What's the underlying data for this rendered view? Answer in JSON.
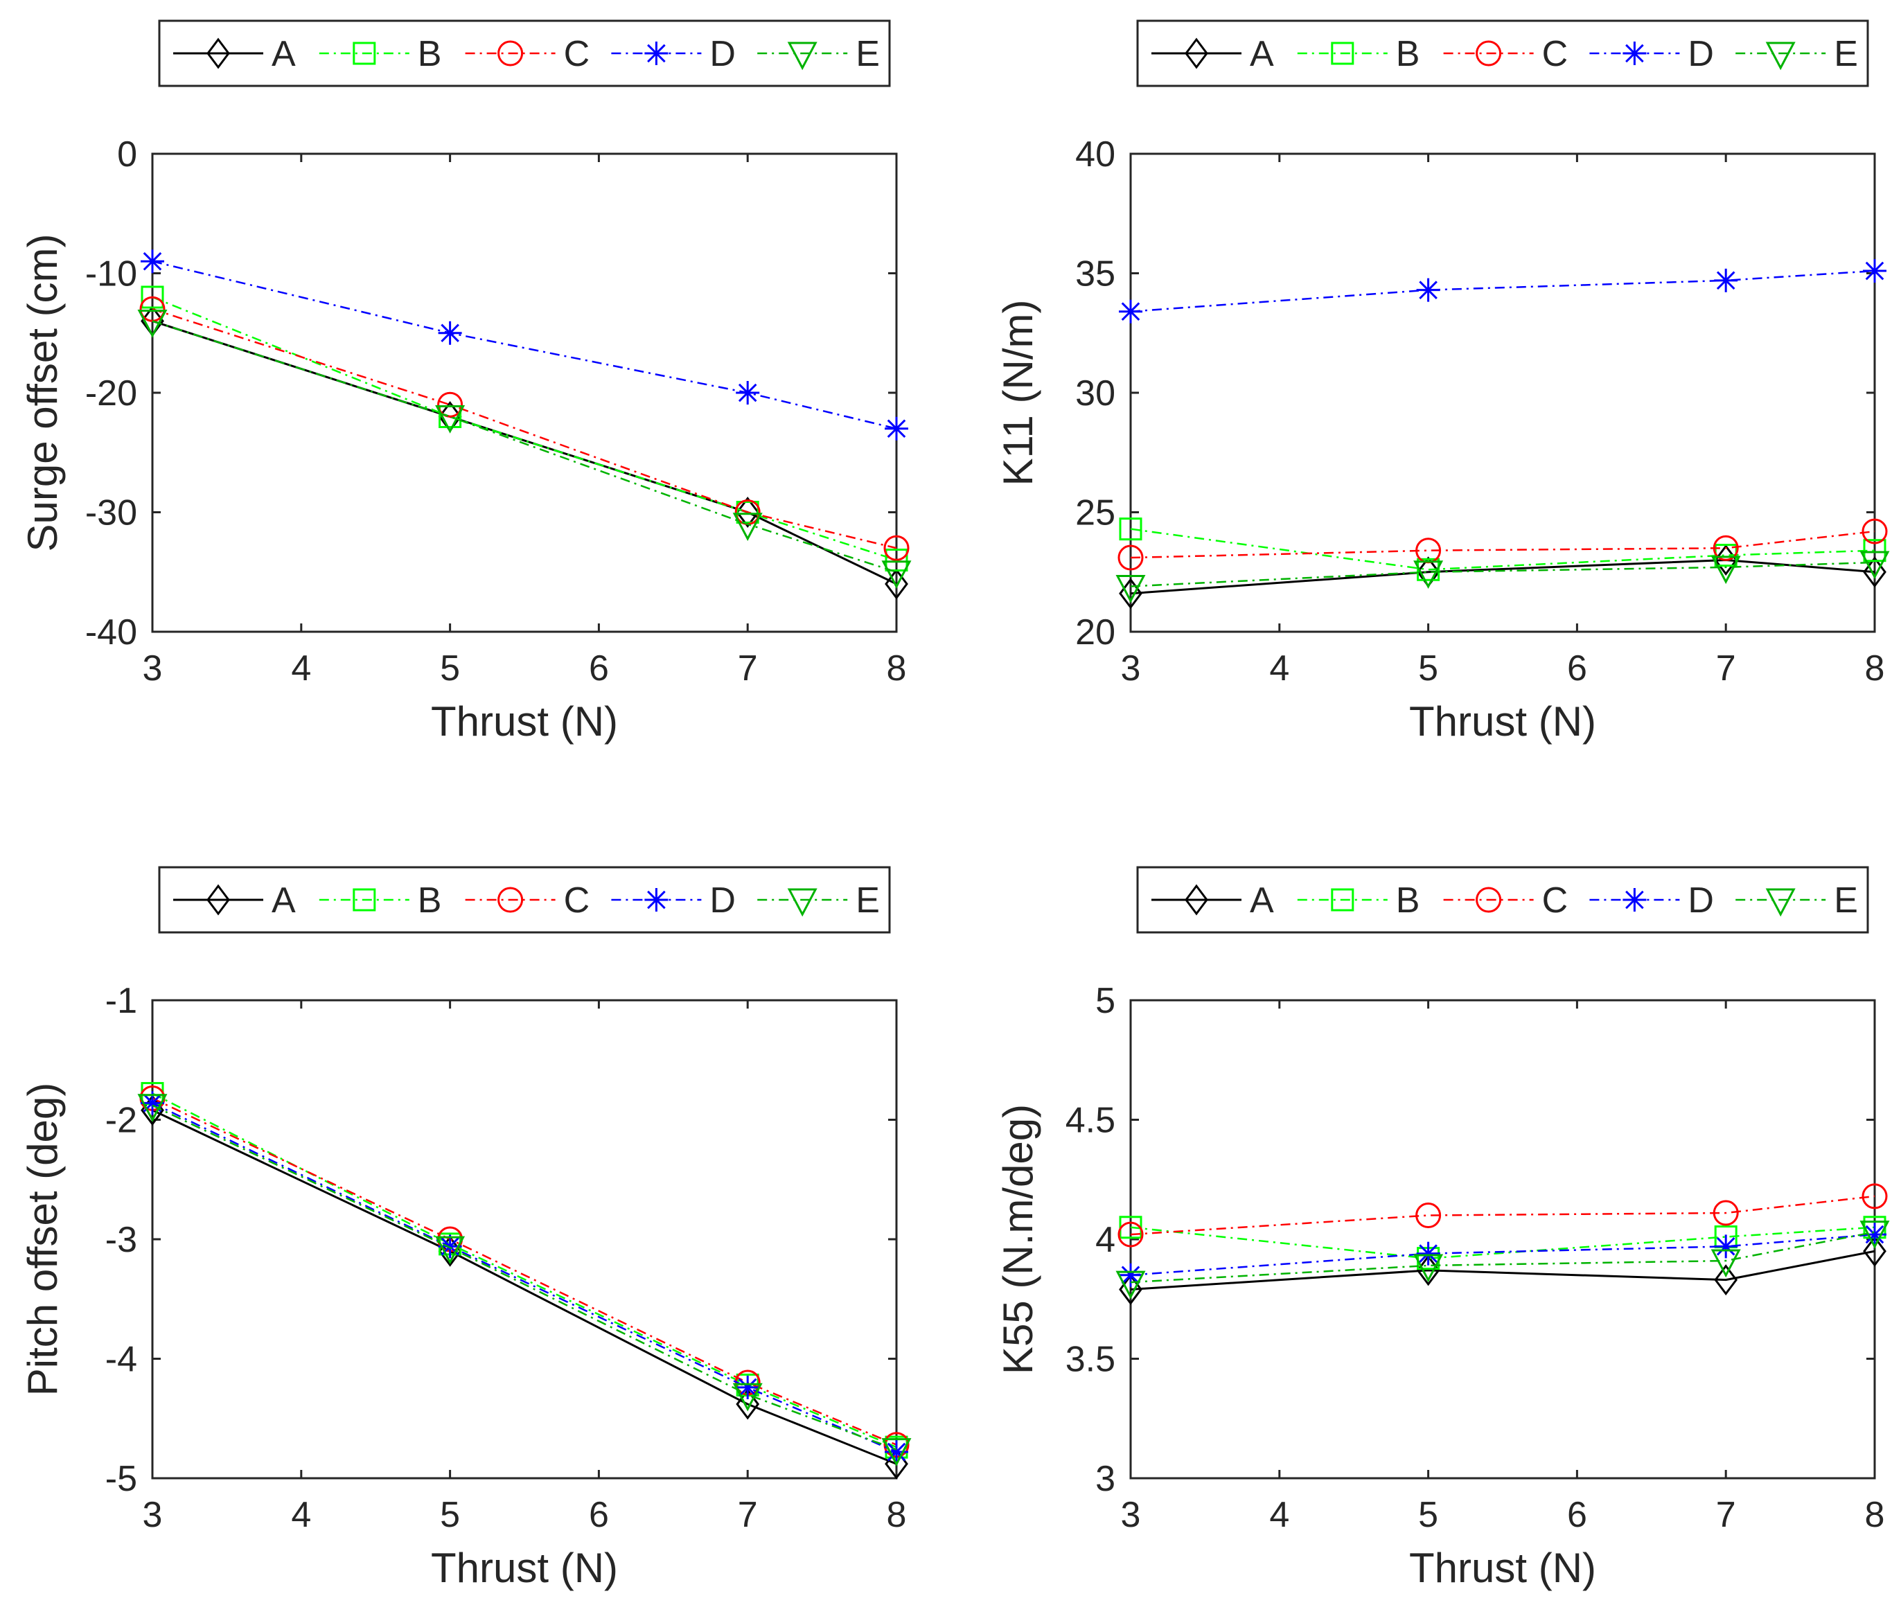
{
  "chart_data": [
    {
      "type": "line",
      "xlabel": "Thrust (N)",
      "ylabel": "Surge offset (cm)",
      "x": [
        3,
        5,
        7,
        8
      ],
      "xlim": [
        3,
        8
      ],
      "ylim": [
        -40,
        0
      ],
      "xticks": [
        3,
        4,
        5,
        6,
        7,
        8
      ],
      "yticks": [
        -40,
        -30,
        -20,
        -10,
        0
      ],
      "grid": false,
      "legend": "top-outside",
      "series": [
        {
          "name": "A",
          "values": [
            -14,
            -22,
            -30,
            -36
          ],
          "color": "#000000",
          "marker": "diamond",
          "dash": "solid"
        },
        {
          "name": "B",
          "values": [
            -12,
            -22,
            -30,
            -34
          ],
          "color": "#00ff00",
          "marker": "square",
          "dash": "dashdot"
        },
        {
          "name": "C",
          "values": [
            -13,
            -21,
            -30,
            -33
          ],
          "color": "#ff0000",
          "marker": "circle",
          "dash": "dashdot"
        },
        {
          "name": "D",
          "values": [
            -9,
            -15,
            -20,
            -23
          ],
          "color": "#0000ff",
          "marker": "asterisk",
          "dash": "dashdot"
        },
        {
          "name": "E",
          "values": [
            -14,
            -22,
            -31,
            -35
          ],
          "color": "#00b300",
          "marker": "triangle-down",
          "dash": "dashdot"
        }
      ]
    },
    {
      "type": "line",
      "xlabel": "Thrust (N)",
      "ylabel": "K11 (N/m)",
      "x": [
        3,
        5,
        7,
        8
      ],
      "xlim": [
        3,
        8
      ],
      "ylim": [
        20,
        40
      ],
      "xticks": [
        3,
        4,
        5,
        6,
        7,
        8
      ],
      "yticks": [
        20,
        25,
        30,
        35,
        40
      ],
      "grid": false,
      "legend": "top-outside",
      "series": [
        {
          "name": "A",
          "values": [
            21.6,
            22.5,
            23.0,
            22.5
          ],
          "color": "#000000",
          "marker": "diamond",
          "dash": "solid"
        },
        {
          "name": "B",
          "values": [
            24.3,
            22.6,
            23.2,
            23.4
          ],
          "color": "#00ff00",
          "marker": "square",
          "dash": "dashdot"
        },
        {
          "name": "C",
          "values": [
            23.1,
            23.4,
            23.5,
            24.2
          ],
          "color": "#ff0000",
          "marker": "circle",
          "dash": "dashdot"
        },
        {
          "name": "D",
          "values": [
            33.4,
            34.3,
            34.7,
            35.1
          ],
          "color": "#0000ff",
          "marker": "asterisk",
          "dash": "dashdot"
        },
        {
          "name": "E",
          "values": [
            21.9,
            22.5,
            22.7,
            22.9
          ],
          "color": "#00b300",
          "marker": "triangle-down",
          "dash": "dashdot"
        }
      ]
    },
    {
      "type": "line",
      "xlabel": "Thrust (N)",
      "ylabel": "Pitch offset (deg)",
      "x": [
        3,
        5,
        7,
        8
      ],
      "xlim": [
        3,
        8
      ],
      "ylim": [
        -5,
        -1
      ],
      "xticks": [
        3,
        4,
        5,
        6,
        7,
        8
      ],
      "yticks": [
        -5,
        -4,
        -3,
        -2,
        -1
      ],
      "grid": false,
      "legend": "top-outside",
      "series": [
        {
          "name": "A",
          "values": [
            -1.92,
            -3.1,
            -4.38,
            -4.88
          ],
          "color": "#000000",
          "marker": "diamond",
          "dash": "solid"
        },
        {
          "name": "B",
          "values": [
            -1.78,
            -3.04,
            -4.22,
            -4.74
          ],
          "color": "#00ff00",
          "marker": "square",
          "dash": "dashdot"
        },
        {
          "name": "C",
          "values": [
            -1.82,
            -3.0,
            -4.2,
            -4.72
          ],
          "color": "#ff0000",
          "marker": "circle",
          "dash": "dashdot"
        },
        {
          "name": "D",
          "values": [
            -1.86,
            -3.06,
            -4.24,
            -4.78
          ],
          "color": "#0000ff",
          "marker": "asterisk",
          "dash": "dashdot"
        },
        {
          "name": "E",
          "values": [
            -1.88,
            -3.07,
            -4.3,
            -4.76
          ],
          "color": "#00b300",
          "marker": "triangle-down",
          "dash": "dashdot"
        }
      ]
    },
    {
      "type": "line",
      "xlabel": "Thrust (N)",
      "ylabel": "K55 (N.m/deg)",
      "x": [
        3,
        5,
        7,
        8
      ],
      "xlim": [
        3,
        8
      ],
      "ylim": [
        3,
        5
      ],
      "xticks": [
        3,
        4,
        5,
        6,
        7,
        8
      ],
      "yticks": [
        3,
        3.5,
        4,
        4.5,
        5
      ],
      "grid": false,
      "legend": "top-outside",
      "series": [
        {
          "name": "A",
          "values": [
            3.79,
            3.87,
            3.83,
            3.95
          ],
          "color": "#000000",
          "marker": "diamond",
          "dash": "solid"
        },
        {
          "name": "B",
          "values": [
            4.05,
            3.92,
            4.01,
            4.05
          ],
          "color": "#00ff00",
          "marker": "square",
          "dash": "dashdot"
        },
        {
          "name": "C",
          "values": [
            4.02,
            4.1,
            4.11,
            4.18
          ],
          "color": "#ff0000",
          "marker": "circle",
          "dash": "dashdot"
        },
        {
          "name": "D",
          "values": [
            3.85,
            3.94,
            3.97,
            4.02
          ],
          "color": "#0000ff",
          "marker": "asterisk",
          "dash": "dashdot"
        },
        {
          "name": "E",
          "values": [
            3.82,
            3.89,
            3.91,
            4.03
          ],
          "color": "#00b300",
          "marker": "triangle-down",
          "dash": "dashdot"
        }
      ]
    }
  ]
}
